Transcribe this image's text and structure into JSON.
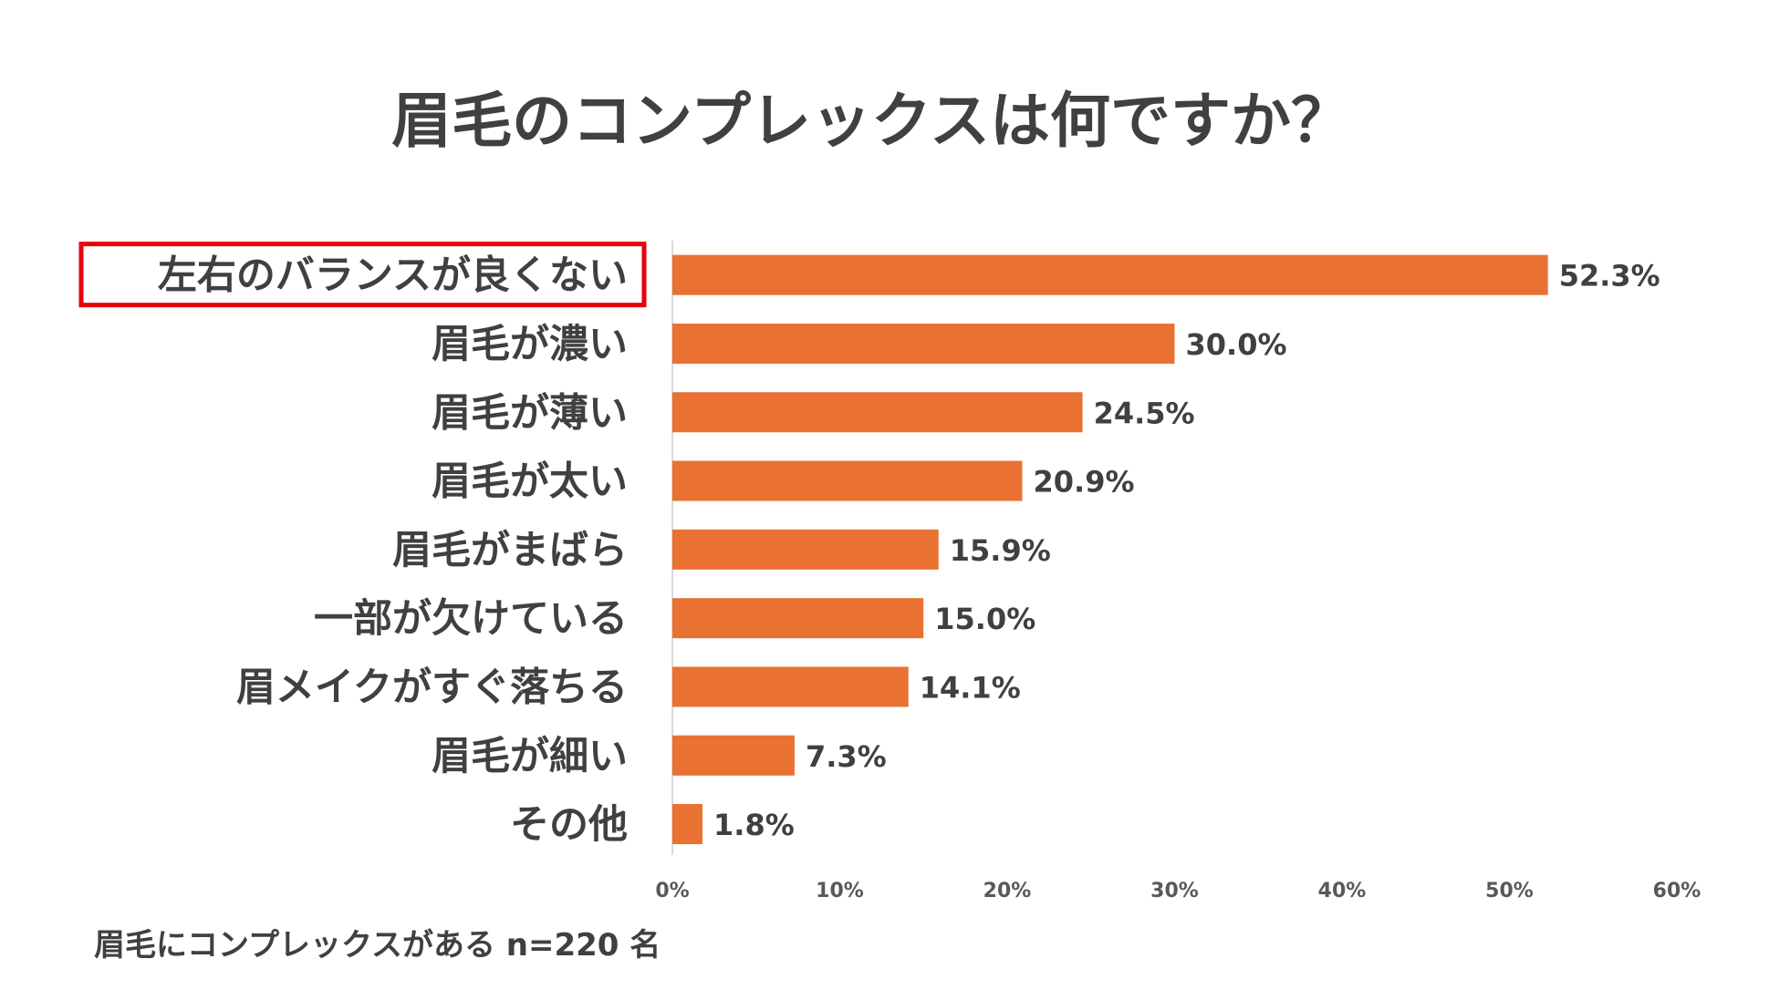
{
  "chart_data": {
    "type": "bar",
    "orientation": "horizontal",
    "title": "眉毛のコンプレックスは何ですか？",
    "categories": [
      "左右のバランスが良くない",
      "眉毛が濃い",
      "眉毛が薄い",
      "眉毛が太い",
      "眉毛がまばら",
      "一部が欠けている",
      "眉メイクがすぐ落ちる",
      "眉毛が細い",
      "その他"
    ],
    "values": [
      52.3,
      30.0,
      24.5,
      20.9,
      15.9,
      15.0,
      14.1,
      7.3,
      1.8
    ],
    "value_labels": [
      "52.3%",
      "30.0%",
      "24.5%",
      "20.9%",
      "15.9%",
      "15.0%",
      "14.1%",
      "7.3%",
      "1.8%"
    ],
    "xlim": [
      0,
      60
    ],
    "xticks": [
      0,
      10,
      20,
      30,
      40,
      50,
      60
    ],
    "xtick_labels": [
      "0%",
      "10%",
      "20%",
      "30%",
      "40%",
      "50%",
      "60%"
    ],
    "xlabel": "",
    "ylabel": "",
    "grid": false,
    "highlighted_category_index": 0,
    "note": "眉毛にコンプレックスがある n=220 名"
  },
  "colors": {
    "bar": "#E97132",
    "text": "#404040",
    "tick": "#595959",
    "axis": "#D9D9D9",
    "highlight_box": "#E8000B",
    "background": "#FFFFFF"
  }
}
